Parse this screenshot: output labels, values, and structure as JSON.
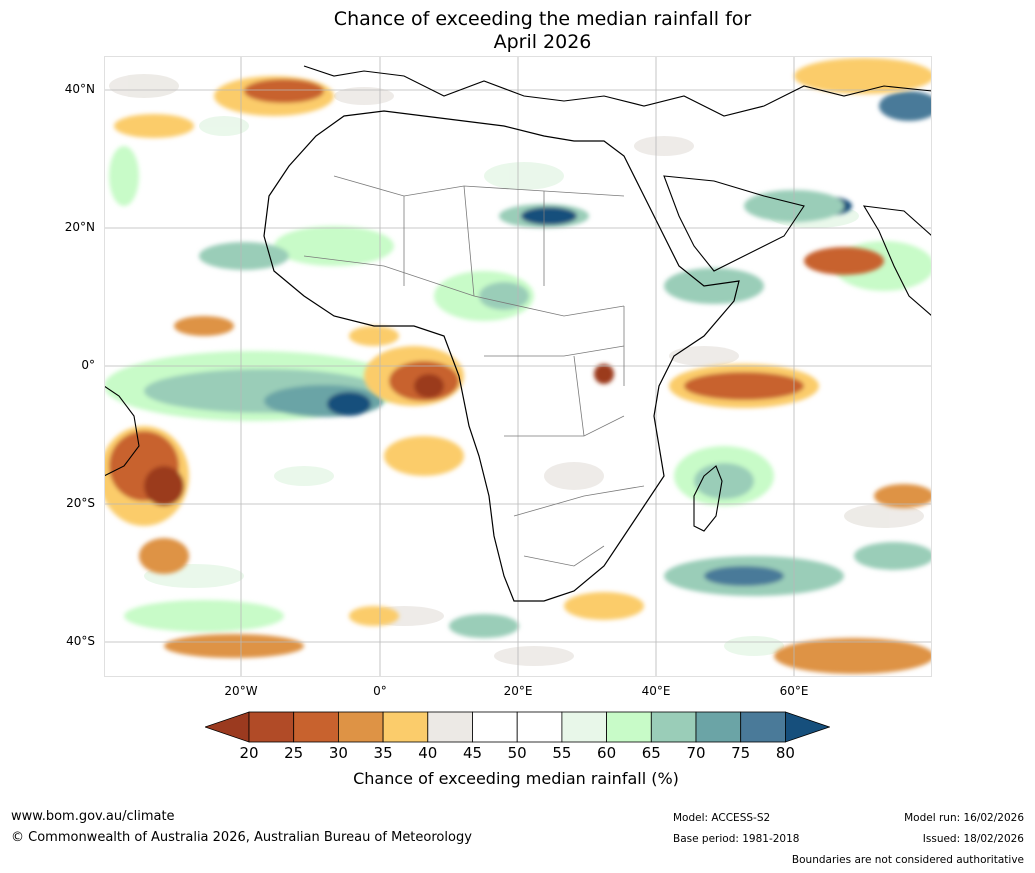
{
  "title": {
    "line1": "Chance of exceeding the median rainfall for",
    "line2": "April 2026"
  },
  "map": {
    "region": "Africa",
    "lat_labels": [
      "40°N",
      "20°N",
      "0°",
      "20°S",
      "40°S"
    ],
    "lon_labels": [
      "20°W",
      "0°",
      "20°E",
      "40°E",
      "60°E"
    ]
  },
  "colorbar": {
    "ticks": [
      "20",
      "25",
      "30",
      "35",
      "40",
      "45",
      "50",
      "55",
      "60",
      "65",
      "70",
      "75",
      "80"
    ],
    "colors": [
      "#9b3a1f",
      "#b14b27",
      "#c8622e",
      "#de9345",
      "#fbcc6b",
      "#ece9e5",
      "#ffffff",
      "#ffffff",
      "#e8f7e9",
      "#c8fbc8",
      "#9acdb8",
      "#6ba4a6",
      "#4a7a99",
      "#164f7c"
    ],
    "title": "Chance of exceeding median rainfall (%)"
  },
  "footer": {
    "website": "www.bom.gov.au/climate",
    "copyright": "© Commonwealth of Australia 2026, Australian Bureau of Meteorology",
    "model": "Model: ACCESS-S2",
    "base_period": "Base period: 1981-2018",
    "model_run": "Model run: 16/02/2026",
    "issued": "Issued: 18/02/2026",
    "disclaimer": "Boundaries are not considered authoritative"
  }
}
